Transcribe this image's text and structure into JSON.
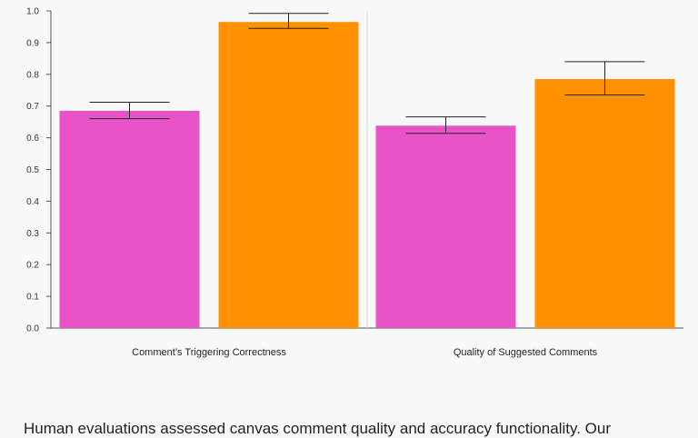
{
  "chart_data": {
    "type": "bar",
    "categories": [
      "Comment’s Triggering Correctness",
      "Quality of Suggested Comments"
    ],
    "series": [
      {
        "color": "#e854c8",
        "values": [
          0.685,
          0.638
        ],
        "error_low": [
          0.66,
          0.614
        ],
        "error_high": [
          0.712,
          0.666
        ]
      },
      {
        "color": "#ff9000",
        "values": [
          0.965,
          0.785
        ],
        "error_low": [
          0.945,
          0.735
        ],
        "error_high": [
          0.992,
          0.84
        ]
      }
    ],
    "ylim": [
      0,
      1.0
    ],
    "yticks": [
      "0.0",
      "0.1",
      "0.2",
      "0.3",
      "0.4",
      "0.5",
      "0.6",
      "0.7",
      "0.8",
      "0.9",
      "1.0"
    ],
    "grid": false,
    "legend": "none",
    "title": "",
    "xlabel": "",
    "ylabel": ""
  },
  "caption": "Human evaluations assessed canvas comment quality and accuracy functionality. Our"
}
